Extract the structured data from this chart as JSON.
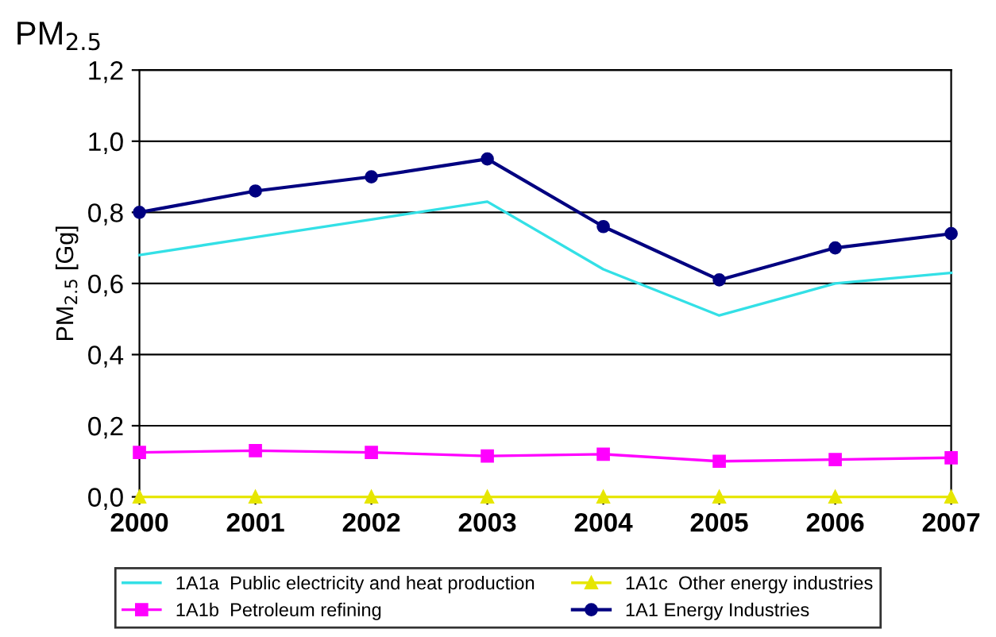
{
  "chart_data": {
    "type": "line",
    "title": "PM$_{2.5}$",
    "ylabel": "PM$_{2.5}$ [Gg]",
    "x": [
      2000,
      2001,
      2002,
      2003,
      2004,
      2005,
      2006,
      2007
    ],
    "xlim": [
      2000,
      2007
    ],
    "xticks": [
      2000,
      2001,
      2002,
      2003,
      2004,
      2005,
      2006,
      2007
    ],
    "ylim": [
      0,
      1.2
    ],
    "yticks": [
      {
        "value": 0,
        "label": "0,0"
      },
      {
        "value": 0.2,
        "label": "0,2"
      },
      {
        "value": 0.4,
        "label": "0,4"
      },
      {
        "value": 0.6,
        "label": "0,6"
      },
      {
        "value": 0.8,
        "label": "0,8"
      },
      {
        "value": 1.0,
        "label": "1,0"
      },
      {
        "value": 1.2,
        "label": "1,2"
      }
    ],
    "grid": "y",
    "legend": "bottom",
    "series": [
      {
        "name": "1A1a  Public electricity and heat production",
        "color": "#33e0e6",
        "marker": "none",
        "values": [
          0.68,
          0.73,
          0.78,
          0.83,
          0.64,
          0.51,
          0.6,
          0.63
        ]
      },
      {
        "name": "1A1b  Petroleum refining",
        "color": "#ff00ff",
        "marker": "square",
        "values": [
          0.125,
          0.13,
          0.125,
          0.115,
          0.12,
          0.1,
          0.105,
          0.11
        ]
      },
      {
        "name": "1A1c  Other energy industries",
        "color": "#e6e600",
        "marker": "triangle",
        "values": [
          0.0,
          0.0,
          0.0,
          0.0,
          0.0,
          0.0,
          0.0,
          0.0
        ]
      },
      {
        "name": "1A1 Energy Industries",
        "color": "#000080",
        "marker": "circle",
        "values": [
          0.8,
          0.86,
          0.9,
          0.95,
          0.76,
          0.61,
          0.7,
          0.74
        ]
      }
    ]
  }
}
